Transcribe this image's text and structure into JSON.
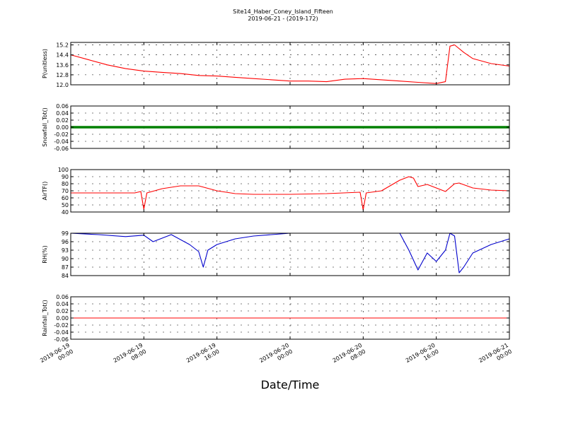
{
  "chart_data": {
    "type": "line",
    "title": "Site14_Haber_Coney_Island_Fifteen",
    "subtitle": "2019-06-21 - (2019-172)",
    "xlabel": "Date/Time",
    "x_ticks": [
      {
        "line1": "2019-06-19",
        "line2": "00:00"
      },
      {
        "line1": "2019-06-19",
        "line2": "08:00"
      },
      {
        "line1": "2019-06-19",
        "line2": "16:00"
      },
      {
        "line1": "2019-06-20",
        "line2": "00:00"
      },
      {
        "line1": "2019-06-20",
        "line2": "08:00"
      },
      {
        "line1": "2019-06-20",
        "line2": "16:00"
      },
      {
        "line1": "2019-06-21",
        "line2": "00:00"
      }
    ],
    "xlim": [
      "2019-06-19 00:00",
      "2019-06-21 00:00"
    ],
    "grid": true,
    "panels": [
      {
        "ylabel": "P(unitless)",
        "ylim": [
          12.0,
          15.4
        ],
        "yticks": [
          "15.2",
          "14.4",
          "13.6",
          "12.8",
          "12.0"
        ],
        "ytick_values": [
          15.2,
          14.4,
          13.6,
          12.8,
          12.0
        ],
        "color": "#ff0000",
        "series": {
          "x": [
            "2019-06-19 00:00",
            "2019-06-19 02:00",
            "2019-06-19 04:00",
            "2019-06-19 06:00",
            "2019-06-19 08:00",
            "2019-06-19 10:00",
            "2019-06-19 12:00",
            "2019-06-19 14:00",
            "2019-06-19 16:00",
            "2019-06-19 18:00",
            "2019-06-19 20:00",
            "2019-06-19 22:00",
            "2019-06-20 00:00",
            "2019-06-20 02:00",
            "2019-06-20 04:00",
            "2019-06-20 06:00",
            "2019-06-20 08:00",
            "2019-06-20 10:00",
            "2019-06-20 12:00",
            "2019-06-20 14:00",
            "2019-06-20 16:00",
            "2019-06-20 17:00",
            "2019-06-20 17:30",
            "2019-06-20 18:00",
            "2019-06-20 19:00",
            "2019-06-20 20:00",
            "2019-06-20 22:00",
            "2019-06-21 00:00"
          ],
          "values": [
            14.4,
            14.0,
            13.6,
            13.3,
            13.1,
            13.0,
            12.9,
            12.75,
            12.7,
            12.6,
            12.5,
            12.4,
            12.3,
            12.3,
            12.25,
            12.45,
            12.5,
            12.4,
            12.3,
            12.2,
            12.1,
            12.25,
            15.1,
            15.2,
            14.6,
            14.1,
            13.7,
            13.5
          ]
        }
      },
      {
        "ylabel": "Snowfall_Tot()",
        "ylim": [
          -0.06,
          0.06
        ],
        "yticks": [
          "0.06",
          "0.04",
          "0.02",
          "0.00",
          "-0.02",
          "-0.04",
          "-0.06"
        ],
        "ytick_values": [
          0.06,
          0.04,
          0.02,
          0.0,
          -0.02,
          -0.04,
          -0.06
        ],
        "color": "#008000",
        "series": {
          "x": [
            "2019-06-19 00:00",
            "2019-06-21 00:00"
          ],
          "values": [
            0.0,
            0.0
          ]
        }
      },
      {
        "ylabel": "AirTF()",
        "ylim": [
          40,
          100
        ],
        "yticks": [
          "100",
          "90",
          "80",
          "70",
          "60",
          "50",
          "40"
        ],
        "ytick_values": [
          100,
          90,
          80,
          70,
          60,
          50,
          40
        ],
        "color": "#ff0000",
        "series": {
          "x": [
            "2019-06-19 00:00",
            "2019-06-19 04:00",
            "2019-06-19 07:00",
            "2019-06-19 07:40",
            "2019-06-19 08:00",
            "2019-06-19 08:20",
            "2019-06-19 10:00",
            "2019-06-19 12:00",
            "2019-06-19 14:00",
            "2019-06-19 16:00",
            "2019-06-19 18:00",
            "2019-06-19 20:00",
            "2019-06-20 00:00",
            "2019-06-20 04:00",
            "2019-06-20 07:40",
            "2019-06-20 08:00",
            "2019-06-20 08:20",
            "2019-06-20 10:00",
            "2019-06-20 12:00",
            "2019-06-20 13:00",
            "2019-06-20 13:30",
            "2019-06-20 14:00",
            "2019-06-20 15:00",
            "2019-06-20 16:00",
            "2019-06-20 17:00",
            "2019-06-20 18:00",
            "2019-06-20 18:30",
            "2019-06-20 20:00",
            "2019-06-20 22:00",
            "2019-06-21 00:00"
          ],
          "values": [
            67,
            67,
            67,
            69,
            44,
            67,
            73,
            77,
            77,
            70,
            66,
            65,
            65,
            66,
            68,
            43,
            67,
            70,
            85,
            90,
            88,
            76,
            79,
            74,
            69,
            80,
            81,
            74,
            71,
            70
          ]
        }
      },
      {
        "ylabel": "RH(%)",
        "ylim": [
          84,
          99
        ],
        "yticks": [
          "99",
          "96",
          "93",
          "90",
          "87",
          "84"
        ],
        "ytick_values": [
          99,
          96,
          93,
          90,
          87,
          84
        ],
        "color": "#0000cc",
        "series": {
          "x": [
            "2019-06-19 00:00",
            "2019-06-19 03:00",
            "2019-06-19 06:00",
            "2019-06-19 08:00",
            "2019-06-19 09:00",
            "2019-06-19 11:00",
            "2019-06-19 13:00",
            "2019-06-19 14:00",
            "2019-06-19 14:30",
            "2019-06-19 15:00",
            "2019-06-19 16:00",
            "2019-06-19 17:00",
            "2019-06-19 18:00",
            "2019-06-19 20:00",
            "2019-06-19 22:00",
            "2019-06-20 00:00",
            "2019-06-20 04:00",
            "2019-06-20 08:00",
            "2019-06-20 10:00",
            "2019-06-20 12:00",
            "2019-06-20 13:00",
            "2019-06-20 14:00",
            "2019-06-20 15:00",
            "2019-06-20 16:00",
            "2019-06-20 17:00",
            "2019-06-20 17:30",
            "2019-06-20 18:00",
            "2019-06-20 18:30",
            "2019-06-20 19:00",
            "2019-06-20 20:00",
            "2019-06-20 22:00",
            "2019-06-21 00:00"
          ],
          "values": [
            99,
            98.5,
            97.8,
            98.3,
            96,
            98.5,
            95,
            92.5,
            87,
            93,
            95,
            96,
            97,
            98,
            98.5,
            99,
            99,
            99,
            99,
            99,
            93,
            86,
            92,
            89,
            93,
            99,
            98,
            85,
            87,
            92,
            95,
            97
          ]
        }
      },
      {
        "ylabel": "Rainfall_Tot()",
        "ylim": [
          -0.06,
          0.06
        ],
        "yticks": [
          "0.06",
          "0.04",
          "0.02",
          "0.00",
          "-0.02",
          "-0.04",
          "-0.06"
        ],
        "ytick_values": [
          0.06,
          0.04,
          0.02,
          0.0,
          -0.02,
          -0.04,
          -0.06
        ],
        "color": "#ff0000",
        "series": {
          "x": [
            "2019-06-19 00:00",
            "2019-06-21 00:00"
          ],
          "values": [
            0.0,
            0.0
          ]
        }
      }
    ]
  }
}
